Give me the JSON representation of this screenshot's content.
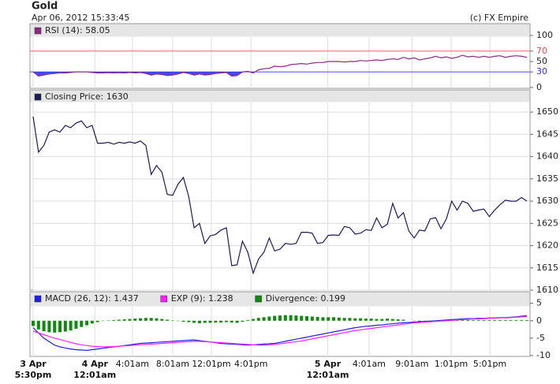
{
  "header": {
    "title": "Gold",
    "timestamp": "Apr 06, 2012 15:33:45",
    "copyright": "(c) FX Empire"
  },
  "chart_data": [
    {
      "type": "line",
      "xlim": [
        0,
        92
      ],
      "ylim": [
        0,
        100
      ],
      "yticks": [
        0,
        30,
        50,
        70,
        100
      ],
      "grid": false,
      "ref_lines": [
        {
          "value": 70,
          "color": "#e05050"
        },
        {
          "value": 30,
          "color": "#3030ff"
        }
      ],
      "fill_below": {
        "value": 30,
        "color": "#4848f0"
      },
      "series": [
        {
          "name": "RSI (14): 58.05",
          "color": "#8a2a80",
          "values": [
            30,
            22,
            24,
            26,
            27,
            28,
            28,
            29,
            30,
            30,
            30,
            29,
            28,
            28,
            28.5,
            28,
            28.5,
            28,
            29,
            28,
            29,
            27,
            24,
            26,
            25,
            23,
            24,
            26,
            29,
            27,
            24,
            26,
            24,
            25,
            27,
            28,
            29,
            22,
            23,
            30,
            31,
            28,
            34,
            36,
            37,
            41,
            40,
            41,
            44,
            45,
            46,
            45,
            47,
            48,
            48,
            50,
            50,
            50,
            49,
            50,
            50,
            52,
            51,
            52,
            53,
            52,
            54,
            55,
            54,
            58,
            55,
            57,
            53,
            55,
            57,
            60,
            57,
            59,
            56,
            58,
            62,
            59,
            60,
            58,
            60,
            58,
            60,
            61,
            58,
            60,
            61,
            60,
            58.05
          ]
        }
      ]
    },
    {
      "type": "line",
      "xlim": [
        0,
        92
      ],
      "ylim": [
        1610,
        1652.5
      ],
      "yticks": [
        1610,
        1615,
        1620,
        1625,
        1630,
        1635,
        1640,
        1645,
        1650
      ],
      "grid": true,
      "series": [
        {
          "name": "Closing Price: 1630",
          "color": "#1c1c55",
          "values": [
            1649,
            1641,
            1642.5,
            1645.5,
            1646,
            1645.5,
            1647,
            1646.5,
            1647.5,
            1648,
            1646.5,
            1647,
            1643,
            1643,
            1643.2,
            1642.8,
            1643.2,
            1643,
            1643.3,
            1643,
            1643.5,
            1642.5,
            1636,
            1638,
            1636.5,
            1631.5,
            1631.3,
            1633.8,
            1635.3,
            1631,
            1624,
            1625,
            1620.5,
            1622.2,
            1622.5,
            1623.5,
            1624,
            1615.5,
            1615.7,
            1621,
            1618.5,
            1613.8,
            1617,
            1618.5,
            1621.7,
            1618.8,
            1619.2,
            1620.5,
            1620.3,
            1620.5,
            1623,
            1623,
            1622.8,
            1620.5,
            1620.7,
            1622.3,
            1622.4,
            1622.3,
            1624.3,
            1624,
            1622.6,
            1622.8,
            1623.6,
            1623.4,
            1626.2,
            1624,
            1624.8,
            1629.5,
            1626.2,
            1627.4,
            1623.3,
            1621.7,
            1623.5,
            1623.3,
            1626,
            1626.3,
            1623.8,
            1626,
            1630,
            1628,
            1630,
            1629.5,
            1627.7,
            1628,
            1628.2,
            1626.5,
            1628,
            1629.2,
            1630.2,
            1630,
            1630,
            1630.8,
            1630
          ]
        }
      ]
    },
    {
      "type": "line",
      "xlim": [
        0,
        92
      ],
      "ylim": [
        -10,
        6.5
      ],
      "yticks": [
        -10,
        -5,
        0,
        5
      ],
      "grid": false,
      "xticks": [
        {
          "value": 0,
          "label": "3 Apr\n5:30pm"
        },
        {
          "value": 11.5,
          "label": "4 Apr\n12:01am"
        },
        {
          "value": 18.5,
          "label": "4:01am"
        },
        {
          "value": 26,
          "label": "8:01am"
        },
        {
          "value": 33.2,
          "label": "12:01pm"
        },
        {
          "value": 40.6,
          "label": "4:01pm"
        },
        {
          "value": 54.9,
          "label": "5 Apr\n12:01am"
        },
        {
          "value": 62.6,
          "label": "4:01am"
        },
        {
          "value": 70.6,
          "label": "9:01am"
        },
        {
          "value": 77.9,
          "label": "1:01pm"
        },
        {
          "value": 85.1,
          "label": "5:01pm"
        }
      ],
      "series": [
        {
          "name": "MACD (26, 12): 1.437",
          "color": "#2020e0",
          "type": "line",
          "values": [
            -2,
            -3.5,
            -5,
            -6,
            -7,
            -7.5,
            -7.8,
            -8.1,
            -8.3,
            -8.4,
            -8.5,
            -8.3,
            -8.1,
            -7.9,
            -7.7,
            -7.5,
            -7.3,
            -7.1,
            -6.9,
            -6.7,
            -6.5,
            -6.4,
            -6.3,
            -6.2,
            -6.1,
            -6,
            -5.9,
            -5.8,
            -5.7,
            -5.6,
            -5.5,
            -5.7,
            -5.9,
            -6.1,
            -6.3,
            -6.5,
            -6.6,
            -6.7,
            -6.8,
            -6.9,
            -7,
            -6.9,
            -6.8,
            -6.7,
            -6.6,
            -6.5,
            -6.2,
            -5.9,
            -5.6,
            -5.3,
            -5,
            -4.7,
            -4.4,
            -4.1,
            -3.8,
            -3.5,
            -3.2,
            -2.9,
            -2.6,
            -2.3,
            -2,
            -1.8,
            -1.6,
            -1.5,
            -1.3,
            -1.2,
            -1,
            -0.9,
            -0.7,
            -0.6,
            -0.5,
            -0.4,
            -0.3,
            -0.2,
            -0.1,
            0,
            0.1,
            0.2,
            0.3,
            0.4,
            0.5,
            0.6,
            0.6,
            0.7,
            0.7,
            0.8,
            0.8,
            0.9,
            0.9,
            1,
            1.1,
            1.3,
            1.437
          ]
        },
        {
          "name": "EXP (9): 1.238",
          "color": "#ff20ff",
          "type": "line",
          "values": [
            -3,
            -3.5,
            -4,
            -4.5,
            -5,
            -5.4,
            -5.8,
            -6.2,
            -6.6,
            -6.9,
            -7.1,
            -7.3,
            -7.4,
            -7.5,
            -7.5,
            -7.4,
            -7.3,
            -7.2,
            -7.1,
            -7,
            -6.9,
            -6.8,
            -6.7,
            -6.6,
            -6.5,
            -6.4,
            -6.3,
            -6.2,
            -6.1,
            -6,
            -5.9,
            -5.9,
            -6,
            -6.1,
            -6.2,
            -6.3,
            -6.4,
            -6.5,
            -6.6,
            -6.7,
            -6.8,
            -6.9,
            -7,
            -7,
            -6.9,
            -6.8,
            -6.6,
            -6.4,
            -6.2,
            -6,
            -5.8,
            -5.5,
            -5.2,
            -4.9,
            -4.6,
            -4.3,
            -4,
            -3.7,
            -3.4,
            -3.1,
            -2.8,
            -2.6,
            -2.4,
            -2.2,
            -2,
            -1.8,
            -1.6,
            -1.4,
            -1.2,
            -1,
            -0.8,
            -0.6,
            -0.5,
            -0.4,
            -0.3,
            -0.2,
            -0.1,
            0,
            0.1,
            0.2,
            0.3,
            0.4,
            0.5,
            0.5,
            0.6,
            0.7,
            0.7,
            0.8,
            0.8,
            0.9,
            1,
            1.1,
            1.238
          ]
        },
        {
          "name": "Divergence: 0.199",
          "color": "#118811",
          "type": "bar",
          "values": [
            -1.5,
            -2.5,
            -3,
            -3.3,
            -3.4,
            -3.3,
            -3.1,
            -2.8,
            -2.3,
            -1.8,
            -1.3,
            -0.8,
            -0.4,
            -0.1,
            0.1,
            0.2,
            0.3,
            0.4,
            0.5,
            0.6,
            0.7,
            0.8,
            0.8,
            0.7,
            0.5,
            0.3,
            0.1,
            -0.1,
            -0.3,
            -0.4,
            -0.6,
            -0.7,
            -0.6,
            -0.6,
            -0.5,
            -0.5,
            -0.4,
            -0.5,
            -0.6,
            -0.3,
            0.2,
            0.5,
            0.8,
            1,
            1.2,
            1.4,
            1.5,
            1.6,
            1.6,
            1.5,
            1.4,
            1.3,
            1.2,
            1.1,
            1,
            1,
            1,
            0.9,
            0.8,
            0.8,
            0.7,
            0.7,
            0.6,
            0.6,
            0.5,
            0.5,
            0.6,
            0.5,
            0.4,
            0.3,
            0,
            -0.1,
            -0.2,
            -0.1,
            -0.1,
            0,
            0.1,
            0.2,
            0.3,
            0.3,
            0.3,
            0.2,
            0.2,
            0.2,
            0.2,
            0.2,
            0.2,
            0.2,
            0.2,
            0.2,
            0.2,
            0.2,
            0.199
          ]
        }
      ]
    }
  ]
}
